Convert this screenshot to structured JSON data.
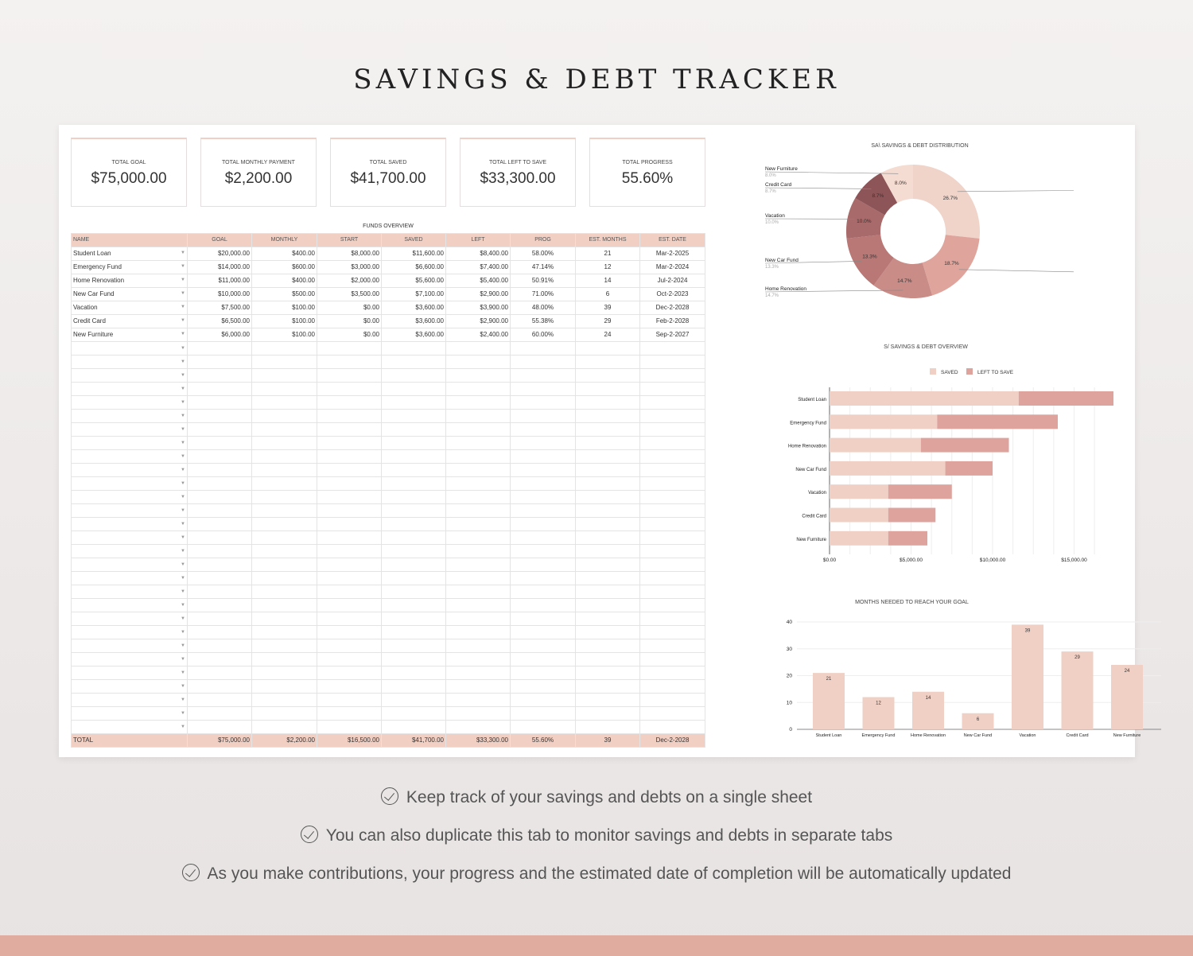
{
  "title": "SAVINGS & DEBT TRACKER",
  "kpis": [
    {
      "label": "TOTAL GOAL",
      "value": "$75,000.00"
    },
    {
      "label": "TOTAL MONTHLY PAYMENT",
      "value": "$2,200.00"
    },
    {
      "label": "TOTAL SAVED",
      "value": "$41,700.00"
    },
    {
      "label": "TOTAL LEFT TO SAVE",
      "value": "$33,300.00"
    },
    {
      "label": "TOTAL PROGRESS",
      "value": "55.60%"
    }
  ],
  "table": {
    "caption": "FUNDS OVERVIEW",
    "headers": [
      "NAME",
      "GOAL",
      "MONTHLY",
      "START",
      "SAVED",
      "LEFT",
      "PROG",
      "EST. MONTHS",
      "EST. DATE"
    ],
    "rows": [
      [
        "Student Loan",
        "$20,000.00",
        "$400.00",
        "$8,000.00",
        "$11,600.00",
        "$8,400.00",
        "58.00%",
        "21",
        "Mar-2-2025"
      ],
      [
        "Emergency Fund",
        "$14,000.00",
        "$600.00",
        "$3,000.00",
        "$6,600.00",
        "$7,400.00",
        "47.14%",
        "12",
        "Mar-2-2024"
      ],
      [
        "Home Renovation",
        "$11,000.00",
        "$400.00",
        "$2,000.00",
        "$5,600.00",
        "$5,400.00",
        "50.91%",
        "14",
        "Jul-2-2024"
      ],
      [
        "New Car Fund",
        "$10,000.00",
        "$500.00",
        "$3,500.00",
        "$7,100.00",
        "$2,900.00",
        "71.00%",
        "6",
        "Oct-2-2023"
      ],
      [
        "Vacation",
        "$7,500.00",
        "$100.00",
        "$0.00",
        "$3,600.00",
        "$3,900.00",
        "48.00%",
        "39",
        "Dec-2-2028"
      ],
      [
        "Credit Card",
        "$6,500.00",
        "$100.00",
        "$0.00",
        "$3,600.00",
        "$2,900.00",
        "55.38%",
        "29",
        "Feb-2-2028"
      ],
      [
        "New Furniture",
        "$6,000.00",
        "$100.00",
        "$0.00",
        "$3,600.00",
        "$2,400.00",
        "60.00%",
        "24",
        "Sep-2-2027"
      ]
    ],
    "total": [
      "TOTAL",
      "$75,000.00",
      "$2,200.00",
      "$16,500.00",
      "$41,700.00",
      "$33,300.00",
      "55.60%",
      "39",
      "Dec-2-2028"
    ]
  },
  "colors": {
    "accent": "#f2cfc3",
    "saved": "#f0d0c5",
    "left": "#dda39c",
    "band": "#e0aca0"
  },
  "chart_data": [
    {
      "type": "pie",
      "title": "SA\\ SAVINGS & DEBT DISTRIBUTION",
      "categories": [
        "Student Loan",
        "Emergency Fund",
        "Home Renovation",
        "New Car Fund",
        "Vacation",
        "Credit Card",
        "New Furniture"
      ],
      "values": [
        26.7,
        18.7,
        14.7,
        13.3,
        10.0,
        8.7,
        8.0
      ],
      "labels": [
        "26.7%",
        "18.7%",
        "14.7%",
        "13.3%",
        "10.0%",
        "8.7%",
        "8.0%"
      ],
      "colors": [
        "#f0d3c9",
        "#dfa59c",
        "#c98c87",
        "#b97775",
        "#a86a6a",
        "#8e5558",
        "#f5dcd3"
      ],
      "legend": "labels outside"
    },
    {
      "type": "bar",
      "orientation": "horizontal",
      "stacked": true,
      "title": "S/   SAVINGS & DEBT OVERVIEW",
      "categories": [
        "Student Loan",
        "Emergency Fund",
        "Home Renovation",
        "New Car Fund",
        "Vacation",
        "Credit Card",
        "New Furniture"
      ],
      "series": [
        {
          "name": "SAVED",
          "values": [
            11600,
            6600,
            5600,
            7100,
            3600,
            3600,
            3600
          ]
        },
        {
          "name": "LEFT TO SAVE",
          "values": [
            8400,
            7400,
            5400,
            2900,
            3900,
            2900,
            2400
          ]
        }
      ],
      "xlim": [
        0,
        20000
      ],
      "xticks": [
        "$0.00",
        "$5,000.00",
        "$10,000.00",
        "$15,000.00"
      ],
      "legend": "top",
      "grid": true
    },
    {
      "type": "bar",
      "title": "MONTHS NEEDED TO REACH YOUR GOAL",
      "categories": [
        "Student Loan",
        "Emergency Fund",
        "Home Renovation",
        "New Car Fund",
        "Vacation",
        "Credit Card",
        "New Furniture"
      ],
      "values": [
        21,
        12,
        14,
        6,
        39,
        29,
        24
      ],
      "ylim": [
        0,
        40
      ],
      "yticks": [
        "0",
        "10",
        "20",
        "30",
        "40"
      ],
      "grid": true
    }
  ],
  "features": [
    "Keep track of your savings and debts on a single sheet",
    "You can also duplicate this tab to monitor savings and debts in separate tabs",
    "As you make contributions, your progress and the estimated date of completion will be automatically updated"
  ]
}
